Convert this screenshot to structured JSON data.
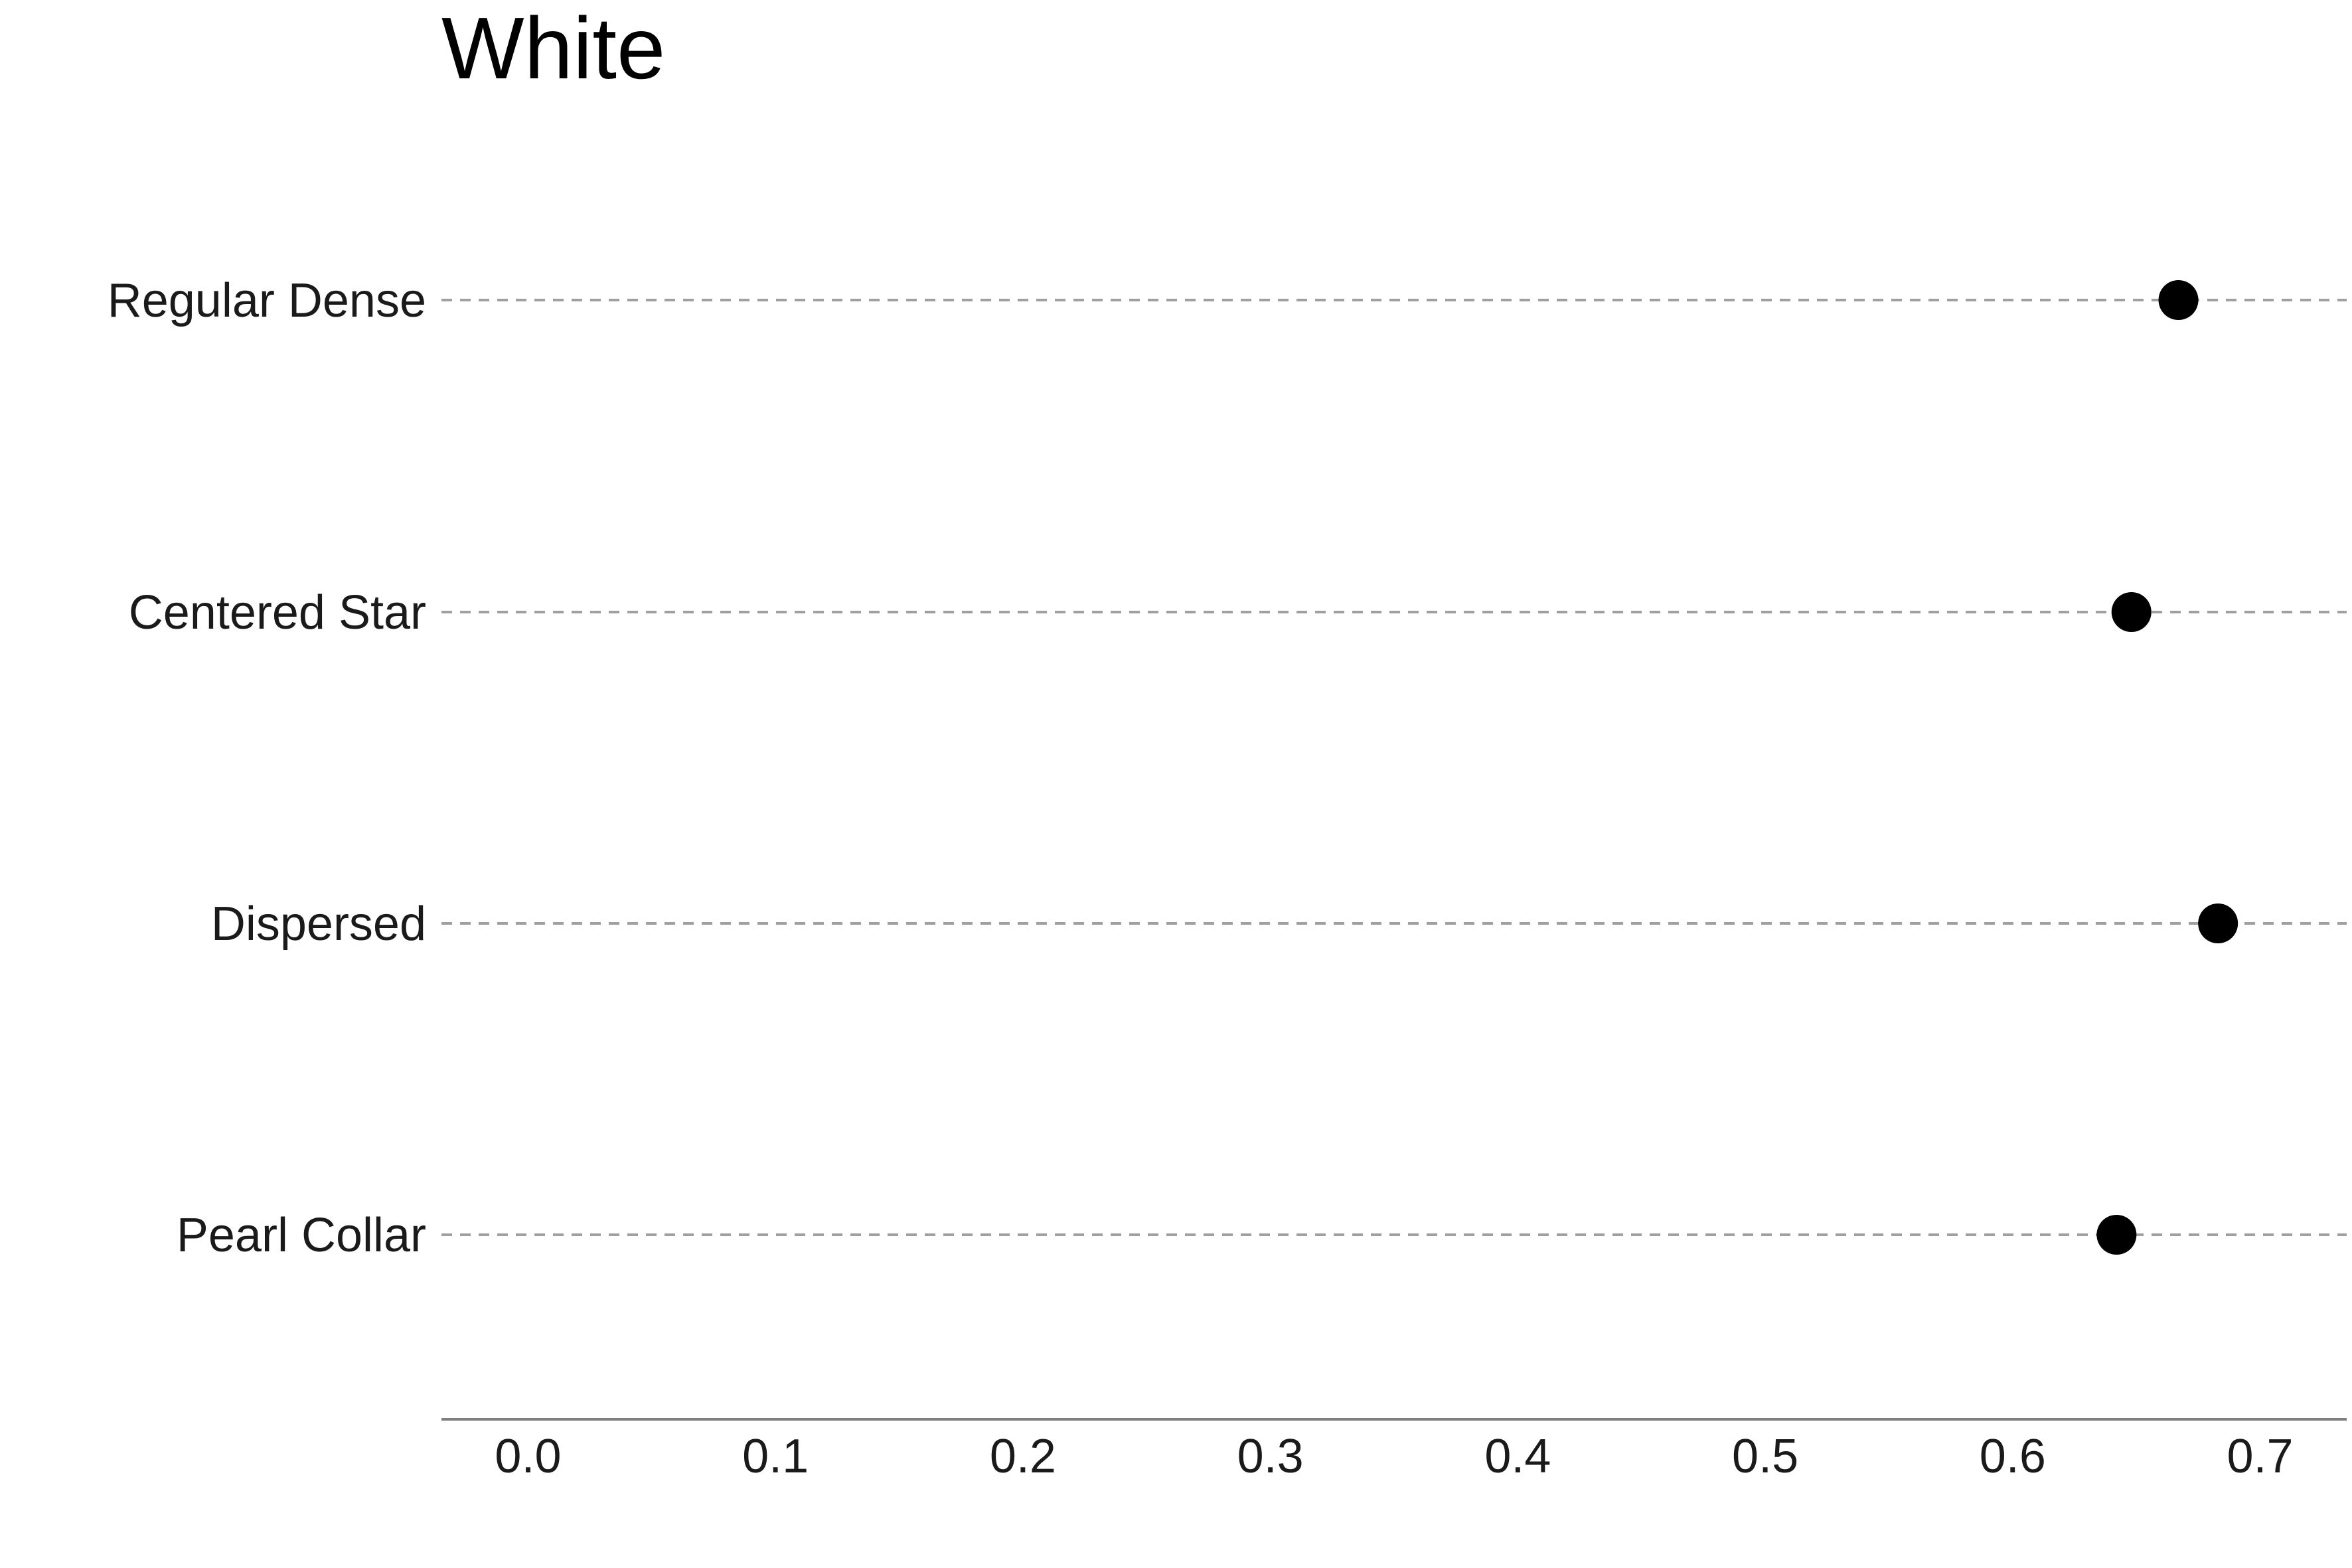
{
  "chart_data": {
    "type": "scatter",
    "title": "White",
    "xlabel": "",
    "ylabel": "",
    "xlim": [
      -0.035,
      0.735
    ],
    "x_ticks": [
      "0.0",
      "0.1",
      "0.2",
      "0.3",
      "0.4",
      "0.5",
      "0.6",
      "0.7"
    ],
    "x_tick_values": [
      0.0,
      0.1,
      0.2,
      0.3,
      0.4,
      0.5,
      0.6,
      0.7
    ],
    "categories": [
      "Regular Dense",
      "Centered Star",
      "Dispersed",
      "Pearl Collar"
    ],
    "values": [
      0.667,
      0.648,
      0.683,
      0.642
    ],
    "grid": "dashed horizontal guide per category",
    "marker_color": "#000000",
    "guide_color": "#a0a0a0",
    "axis_color": "#7f7f7f"
  }
}
